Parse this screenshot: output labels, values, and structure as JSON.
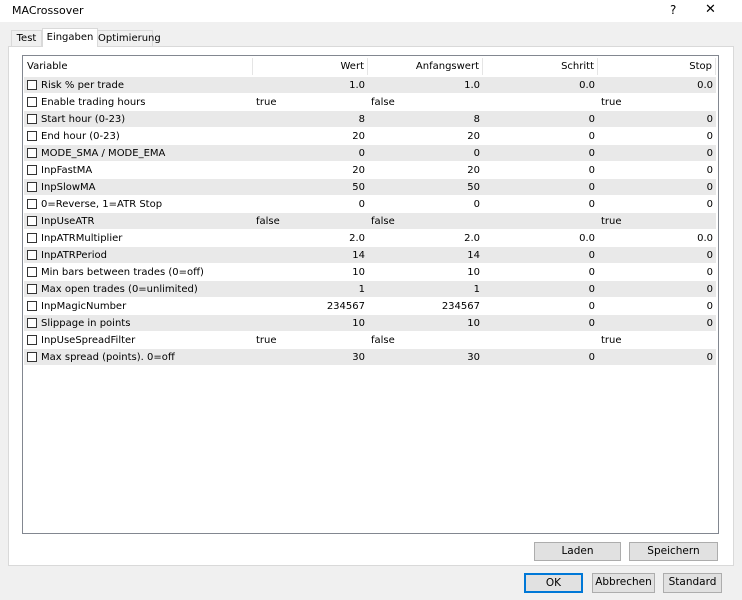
{
  "window": {
    "title": "MACrossover",
    "help": "?",
    "close": "✕"
  },
  "tabs": [
    "Test",
    "Eingaben",
    "Optimierung"
  ],
  "table": {
    "headers": [
      "Variable",
      "Wert",
      "Anfangswert",
      "Schritt",
      "Stop"
    ],
    "rows": [
      [
        "Risk % per trade",
        "1.0",
        "1.0",
        "0.0",
        "0.0"
      ],
      [
        "Enable trading hours",
        "true",
        "false",
        null,
        "true"
      ],
      [
        "Start hour (0-23)",
        "8",
        "8",
        "0",
        "0"
      ],
      [
        "End hour (0-23)",
        "20",
        "20",
        "0",
        "0"
      ],
      [
        "MODE_SMA / MODE_EMA",
        "0",
        "0",
        "0",
        "0"
      ],
      [
        "InpFastMA",
        "20",
        "20",
        "0",
        "0"
      ],
      [
        "InpSlowMA",
        "50",
        "50",
        "0",
        "0"
      ],
      [
        "0=Reverse, 1=ATR Stop",
        "0",
        "0",
        "0",
        "0"
      ],
      [
        "InpUseATR",
        "false",
        "false",
        null,
        "true"
      ],
      [
        "InpATRMultiplier",
        "2.0",
        "2.0",
        "0.0",
        "0.0"
      ],
      [
        "InpATRPeriod",
        "14",
        "14",
        "0",
        "0"
      ],
      [
        "Min bars between trades (0=off)",
        "10",
        "10",
        "0",
        "0"
      ],
      [
        "Max open trades (0=unlimited)",
        "1",
        "1",
        "0",
        "0"
      ],
      [
        "InpMagicNumber",
        "234567",
        "234567",
        "0",
        "0"
      ],
      [
        "Slippage in points",
        "10",
        "10",
        "0",
        "0"
      ],
      [
        "InpUseSpreadFilter",
        "true",
        "false",
        null,
        "true"
      ],
      [
        "Max spread (points). 0=off",
        "30",
        "30",
        "0",
        "0"
      ]
    ]
  },
  "buttons": {
    "load": "Laden",
    "save": "Speichern",
    "ok": "OK",
    "cancel": "Abbrechen",
    "default": "Standard"
  }
}
